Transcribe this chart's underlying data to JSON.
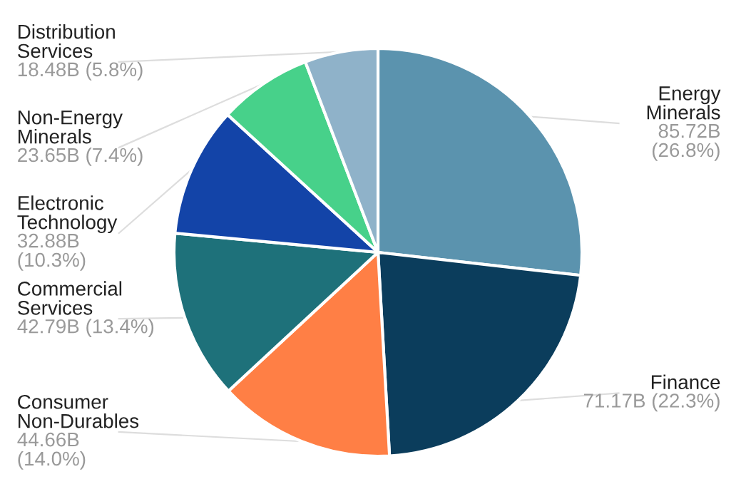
{
  "chart_data": {
    "type": "pie",
    "categories": [
      "Energy\nMinerals",
      "Finance",
      "Consumer\nNon-Durables",
      "Commercial\nServices",
      "Electronic\nTechnology",
      "Non-Energy\nMinerals",
      "Distribution\nServices"
    ],
    "values": [
      26.8,
      22.3,
      14.0,
      13.4,
      10.3,
      7.4,
      5.8
    ],
    "value_labels": [
      "85.72B\n(26.8%)",
      "71.17B (22.3%)",
      "44.66B\n(14.0%)",
      "42.79B (13.4%)",
      "32.88B\n(10.3%)",
      "23.65B (7.4%)",
      "18.48B (5.8%)"
    ],
    "colors": [
      "#5b93ae",
      "#0b3d5c",
      "#ff7f45",
      "#1e717a",
      "#1344a8",
      "#47d18a",
      "#8fb2c9"
    ]
  }
}
